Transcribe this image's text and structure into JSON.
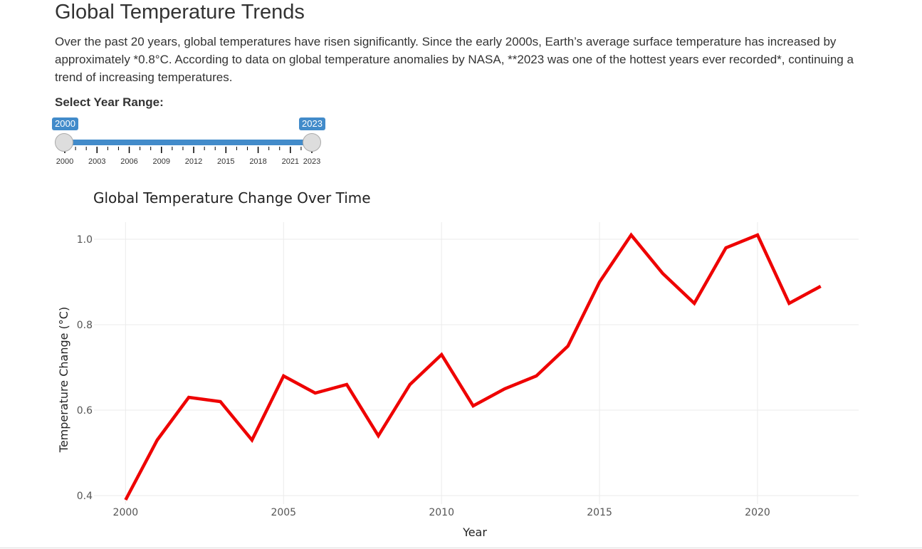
{
  "page": {
    "title": "Global Temperature Trends",
    "intro": "Over the past 20 years, global temperatures have risen significantly. Since the early 2000s, Earth’s average surface temperature has increased by approximately *0.8°C. According to data on global temperature anomalies by NASA, **2023 was one of the hottest years ever recorded*, continuing a trend of increasing temperatures."
  },
  "slider": {
    "label": "Select Year Range:",
    "min": 2000,
    "max": 2023,
    "from": "2000",
    "to": "2023",
    "tick_labels": [
      "2000",
      "2003",
      "2006",
      "2009",
      "2012",
      "2015",
      "2018",
      "2021",
      "2023"
    ],
    "color": "#428bca"
  },
  "chart_data": {
    "type": "line",
    "title": "Global Temperature Change Over Time",
    "xlabel": "Year",
    "ylabel": "Temperature Change (°C)",
    "xlim": [
      1999.0,
      2023.2
    ],
    "ylim": [
      0.38,
      1.04
    ],
    "x_ticks": [
      2000,
      2005,
      2010,
      2015,
      2020
    ],
    "y_ticks": [
      0.4,
      0.6,
      0.8,
      1.0
    ],
    "y_tick_labels": [
      "0.4",
      "0.6",
      "0.8",
      "1.0"
    ],
    "grid": true,
    "series": [
      {
        "color": "#ee0000",
        "x": [
          2000,
          2001,
          2002,
          2003,
          2004,
          2005,
          2006,
          2007,
          2008,
          2009,
          2010,
          2011,
          2012,
          2013,
          2014,
          2015,
          2016,
          2017,
          2018,
          2019,
          2020,
          2021,
          2022
        ],
        "y": [
          0.39,
          0.53,
          0.63,
          0.62,
          0.53,
          0.68,
          0.64,
          0.66,
          0.54,
          0.66,
          0.73,
          0.61,
          0.65,
          0.68,
          0.75,
          0.9,
          1.01,
          0.92,
          0.85,
          0.98,
          1.01,
          0.85,
          0.89
        ]
      }
    ]
  }
}
